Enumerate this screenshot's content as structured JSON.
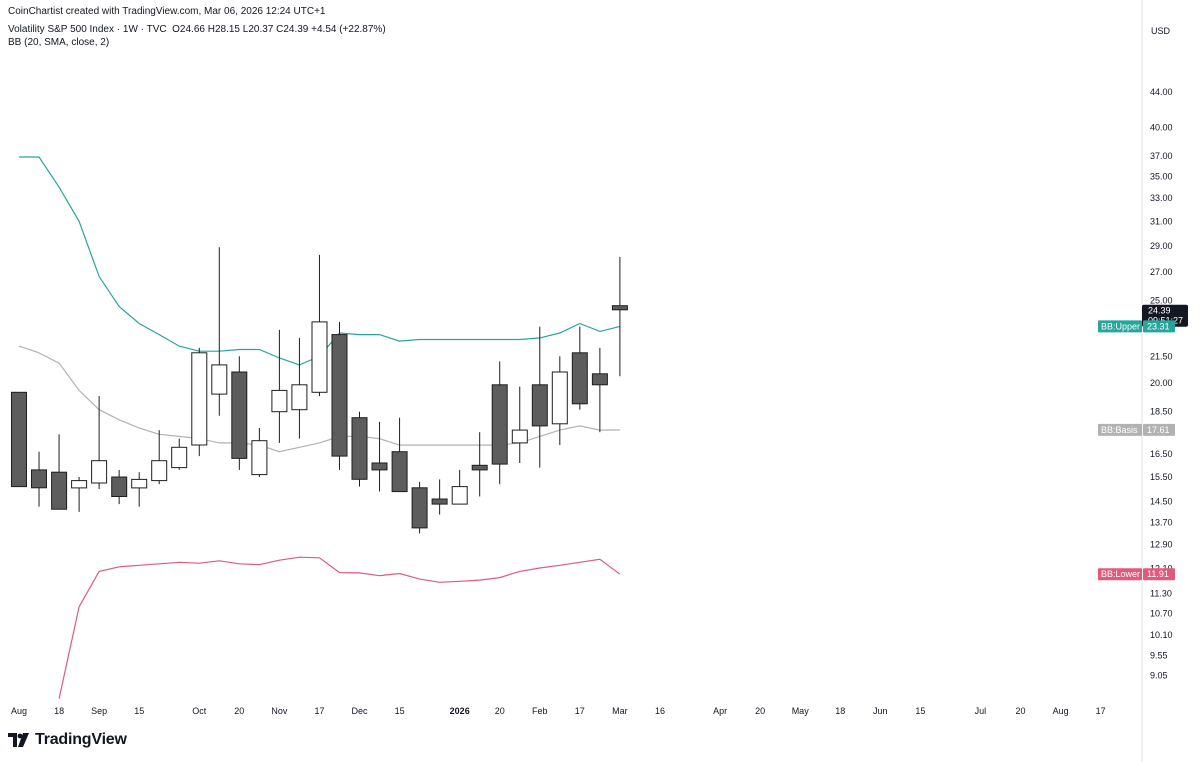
{
  "header": {
    "created": "CoinChartist created with TradingView.com, Mar 06, 2026 12:24 UTC+1",
    "symbol": "Volatility S&P 500 Index · 1W · TVC",
    "ohlc": "O24.66  H28.15  L20.37  C24.39  +4.54 (+22.87%)",
    "indicator": "BB (20, SMA, close, 2)"
  },
  "brand": {
    "name": "TradingView"
  },
  "colors": {
    "up_fill": "#ffffff",
    "down_fill": "#5d5d5d",
    "candle_border": "#1e1e1e",
    "upper": "#26a69a",
    "basis": "#b2b2b2",
    "lower": "#e05a7d",
    "last_price_bg": "#131722",
    "text": "#131722"
  },
  "chart_data": {
    "type": "candlestick",
    "title": "Volatility S&P 500 Index · 1W · TVC",
    "currency_label": "USD",
    "y_scale": "log",
    "ylim": [
      8.7,
      48.0
    ],
    "y_ticks": [
      "44.00",
      "40.00",
      "37.00",
      "35.00",
      "33.00",
      "31.00",
      "29.00",
      "27.00",
      "25.00",
      "21.50",
      "20.00",
      "18.50",
      "16.50",
      "15.50",
      "14.50",
      "13.70",
      "12.90",
      "12.10",
      "11.30",
      "10.70",
      "10.10",
      "9.55",
      "9.05"
    ],
    "x_labels": [
      {
        "i": 0,
        "label": "Aug"
      },
      {
        "i": 2,
        "label": "18"
      },
      {
        "i": 4,
        "label": "Sep"
      },
      {
        "i": 6,
        "label": "15"
      },
      {
        "i": 9,
        "label": "Oct"
      },
      {
        "i": 11,
        "label": "20"
      },
      {
        "i": 13,
        "label": "Nov"
      },
      {
        "i": 15,
        "label": "17"
      },
      {
        "i": 17,
        "label": "Dec"
      },
      {
        "i": 19,
        "label": "15"
      },
      {
        "i": 22,
        "label": "2026",
        "bold": true
      },
      {
        "i": 24,
        "label": "20"
      },
      {
        "i": 26,
        "label": "Feb"
      },
      {
        "i": 28,
        "label": "17"
      },
      {
        "i": 30,
        "label": "Mar"
      },
      {
        "i": 32,
        "label": "16"
      },
      {
        "i": 35,
        "label": "Apr"
      },
      {
        "i": 37,
        "label": "20"
      },
      {
        "i": 39,
        "label": "May"
      },
      {
        "i": 41,
        "label": "18"
      },
      {
        "i": 43,
        "label": "Jun"
      },
      {
        "i": 45,
        "label": "15"
      },
      {
        "i": 48,
        "label": "Jul"
      },
      {
        "i": 50,
        "label": "20"
      },
      {
        "i": 52,
        "label": "Aug"
      },
      {
        "i": 54,
        "label": "17"
      }
    ],
    "candles": [
      {
        "o": 19.5,
        "h": 19.5,
        "l": 15.1,
        "c": 15.1
      },
      {
        "o": 15.8,
        "h": 16.6,
        "l": 14.3,
        "c": 15.05
      },
      {
        "o": 15.7,
        "h": 17.4,
        "l": 14.2,
        "c": 14.2
      },
      {
        "o": 15.05,
        "h": 15.5,
        "l": 14.1,
        "c": 15.35
      },
      {
        "o": 15.25,
        "h": 19.3,
        "l": 15.0,
        "c": 16.2
      },
      {
        "o": 15.5,
        "h": 15.8,
        "l": 14.4,
        "c": 14.7
      },
      {
        "o": 15.05,
        "h": 15.7,
        "l": 14.3,
        "c": 15.4
      },
      {
        "o": 15.35,
        "h": 17.6,
        "l": 15.2,
        "c": 16.2
      },
      {
        "o": 15.9,
        "h": 17.2,
        "l": 15.8,
        "c": 16.8
      },
      {
        "o": 16.9,
        "h": 22.0,
        "l": 16.4,
        "c": 21.7
      },
      {
        "o": 19.4,
        "h": 28.9,
        "l": 18.3,
        "c": 21.0
      },
      {
        "o": 20.6,
        "h": 21.5,
        "l": 15.8,
        "c": 16.3
      },
      {
        "o": 15.6,
        "h": 17.7,
        "l": 15.5,
        "c": 17.1
      },
      {
        "o": 18.5,
        "h": 23.1,
        "l": 17.0,
        "c": 19.6
      },
      {
        "o": 18.6,
        "h": 22.6,
        "l": 17.2,
        "c": 19.9
      },
      {
        "o": 19.5,
        "h": 28.3,
        "l": 19.3,
        "c": 23.6
      },
      {
        "o": 22.8,
        "h": 23.6,
        "l": 15.8,
        "c": 16.4
      },
      {
        "o": 18.2,
        "h": 18.5,
        "l": 15.1,
        "c": 15.4
      },
      {
        "o": 16.1,
        "h": 18.0,
        "l": 14.9,
        "c": 15.8
      },
      {
        "o": 16.6,
        "h": 18.2,
        "l": 14.9,
        "c": 14.9
      },
      {
        "o": 15.05,
        "h": 15.3,
        "l": 13.3,
        "c": 13.5
      },
      {
        "o": 14.6,
        "h": 15.4,
        "l": 14.0,
        "c": 14.4
      },
      {
        "o": 14.4,
        "h": 15.8,
        "l": 14.4,
        "c": 15.1
      },
      {
        "o": 16.0,
        "h": 17.5,
        "l": 14.7,
        "c": 15.8
      },
      {
        "o": 19.9,
        "h": 21.2,
        "l": 15.2,
        "c": 16.05
      },
      {
        "o": 17.0,
        "h": 19.8,
        "l": 16.1,
        "c": 17.6
      },
      {
        "o": 19.9,
        "h": 23.3,
        "l": 15.9,
        "c": 17.8
      },
      {
        "o": 17.9,
        "h": 21.5,
        "l": 16.9,
        "c": 20.6
      },
      {
        "o": 21.7,
        "h": 23.3,
        "l": 18.6,
        "c": 18.9
      },
      {
        "o": 20.5,
        "h": 22.0,
        "l": 17.5,
        "c": 19.9
      },
      {
        "o": 24.66,
        "h": 28.15,
        "l": 20.37,
        "c": 24.39
      }
    ],
    "series": [
      {
        "name": "BB:Upper",
        "label": "BB:Upper",
        "last_label": "23.31",
        "last": 23.31,
        "values": [
          36.9,
          36.9,
          34.0,
          31.0,
          26.7,
          24.6,
          23.5,
          22.8,
          22.1,
          21.8,
          21.8,
          21.9,
          21.9,
          21.4,
          21.0,
          21.5,
          22.9,
          22.8,
          22.8,
          22.4,
          22.5,
          22.5,
          22.5,
          22.5,
          22.5,
          22.5,
          22.6,
          22.9,
          23.5,
          23.0,
          23.31
        ]
      },
      {
        "name": "BB:Basis",
        "label": "BB:Basis",
        "last_label": "17.61",
        "last": 17.61,
        "values": [
          22.1,
          21.7,
          21.1,
          19.6,
          18.6,
          18.1,
          17.7,
          17.4,
          17.3,
          17.2,
          17.0,
          17.0,
          16.9,
          16.6,
          16.8,
          17.0,
          17.3,
          17.3,
          17.2,
          16.9,
          16.9,
          16.9,
          16.9,
          16.9,
          16.9,
          17.0,
          17.3,
          17.6,
          17.8,
          17.6,
          17.61
        ]
      },
      {
        "name": "BB:Lower",
        "label": "BB:Lower",
        "last_label": "11.91",
        "last": 11.91,
        "values": [
          null,
          null,
          8.5,
          10.9,
          12.0,
          12.15,
          12.2,
          12.25,
          12.3,
          12.27,
          12.35,
          12.25,
          12.22,
          12.37,
          12.47,
          12.45,
          11.96,
          11.95,
          11.86,
          11.93,
          11.75,
          11.65,
          11.68,
          11.72,
          11.8,
          12.0,
          12.11,
          12.2,
          12.3,
          12.4,
          11.91
        ]
      }
    ],
    "last_price": {
      "label": "24.39",
      "countdown": "09:51:27",
      "value": 24.39
    }
  }
}
